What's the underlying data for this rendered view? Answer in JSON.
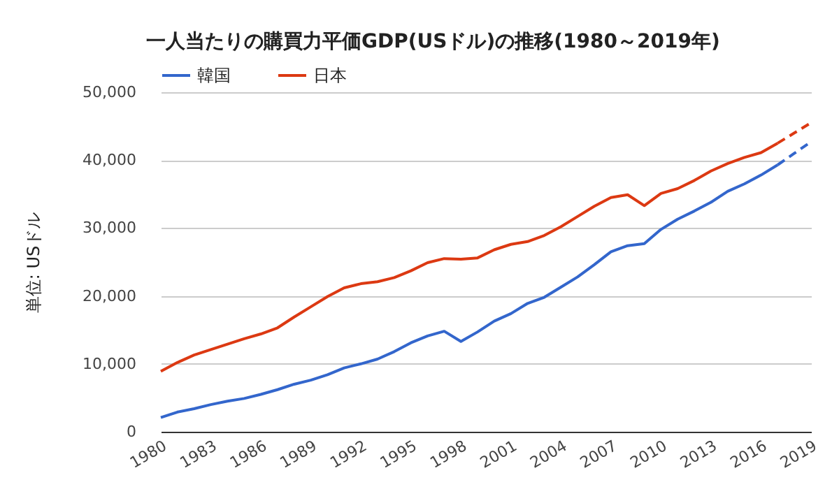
{
  "chart_data": {
    "type": "line",
    "title": "一人当たりの購買力平価GDP(USドル)の推移(1980～2019年)",
    "ylabel": "単位: USドル",
    "x": [
      1980,
      1981,
      1982,
      1983,
      1984,
      1985,
      1986,
      1987,
      1988,
      1989,
      1990,
      1991,
      1992,
      1993,
      1994,
      1995,
      1996,
      1997,
      1998,
      1999,
      2000,
      2001,
      2002,
      2003,
      2004,
      2005,
      2006,
      2007,
      2008,
      2009,
      2010,
      2011,
      2012,
      2013,
      2014,
      2015,
      2016,
      2017
    ],
    "series": [
      {
        "name": "韓国",
        "color": "#3366cc",
        "line_style": "solid",
        "values": [
          2100,
          2900,
          3400,
          4000,
          4500,
          4900,
          5500,
          6200,
          7000,
          7600,
          8400,
          9400,
          10000,
          10700,
          11800,
          13100,
          14100,
          14800,
          13300,
          14700,
          16300,
          17400,
          18900,
          19800,
          21300,
          22800,
          24600,
          26500,
          27400,
          27700,
          29800,
          31300,
          32500,
          33800,
          35400,
          36500,
          37800,
          39300
        ]
      },
      {
        "name": "日本",
        "color": "#dc3912",
        "line_style": "solid",
        "values": [
          8900,
          10200,
          11300,
          12100,
          12900,
          13700,
          14400,
          15300,
          16900,
          18400,
          19900,
          21200,
          21800,
          22100,
          22700,
          23700,
          24900,
          25500,
          25400,
          25600,
          26800,
          27600,
          28000,
          28900,
          30200,
          31700,
          33200,
          34500,
          34900,
          33300,
          35100,
          35800,
          37000,
          38400,
          39500,
          40400,
          41100,
          42500
        ]
      },
      {
        "color": "#3366cc",
        "line_style": "dashed",
        "x": [
          2017,
          2018,
          2019
        ],
        "values": [
          39300,
          41000,
          42700
        ]
      },
      {
        "color": "#dc3912",
        "line_style": "dashed",
        "x": [
          2017,
          2018,
          2019
        ],
        "values": [
          42500,
          44000,
          45500
        ]
      }
    ],
    "xlim": [
      1980,
      2019
    ],
    "xticks": [
      1980,
      1983,
      1986,
      1989,
      1992,
      1995,
      1998,
      2001,
      2004,
      2007,
      2010,
      2013,
      2016,
      2019
    ],
    "ylim": [
      0,
      50000
    ],
    "yticks": [
      0,
      {
        "value": 10000,
        "label": "10,000"
      },
      {
        "value": 20000,
        "label": "20,000"
      },
      {
        "value": 30000,
        "label": "30,000"
      },
      {
        "value": 40000,
        "label": "40,000"
      },
      {
        "value": 50000,
        "label": "50,000"
      }
    ],
    "grid": "y",
    "legend": "top left"
  }
}
